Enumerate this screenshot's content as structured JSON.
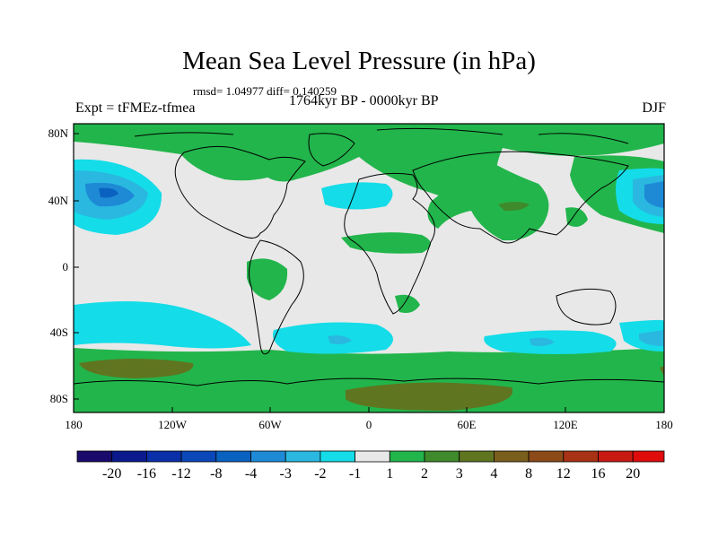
{
  "header": {
    "title": "Mean Sea Level Pressure (in hPa)",
    "stats": "rmsd= 1.04977 diff= 0.140259",
    "experiment": "Expt = tFMEz-tfmea",
    "period": "1764kyr BP - 0000kyr BP",
    "season": "DJF"
  },
  "axes": {
    "lat_labels": [
      "80N",
      "40N",
      "0",
      "40S",
      "80S"
    ],
    "lon_labels": [
      "180",
      "120W",
      "60W",
      "0",
      "60E",
      "120E",
      "180"
    ]
  },
  "colorbar": {
    "labels": [
      "-20",
      "-16",
      "-12",
      "-8",
      "-4",
      "-3",
      "-2",
      "-1",
      "1",
      "2",
      "3",
      "4",
      "8",
      "12",
      "16",
      "20"
    ],
    "colors": [
      "#1a0a6b",
      "#0a1a8c",
      "#0a2fa8",
      "#0a47b8",
      "#0a62c0",
      "#1e8ad6",
      "#2ab8e0",
      "#14dce8",
      "#e8e8e8",
      "#22b54b",
      "#3f8a2a",
      "#5f7520",
      "#7a5e1c",
      "#8c4a18",
      "#a83214",
      "#c81a10",
      "#e00c0c"
    ]
  },
  "map_fields": {
    "background_color": "#e8e8e8",
    "land_outline_color": "#000000"
  }
}
